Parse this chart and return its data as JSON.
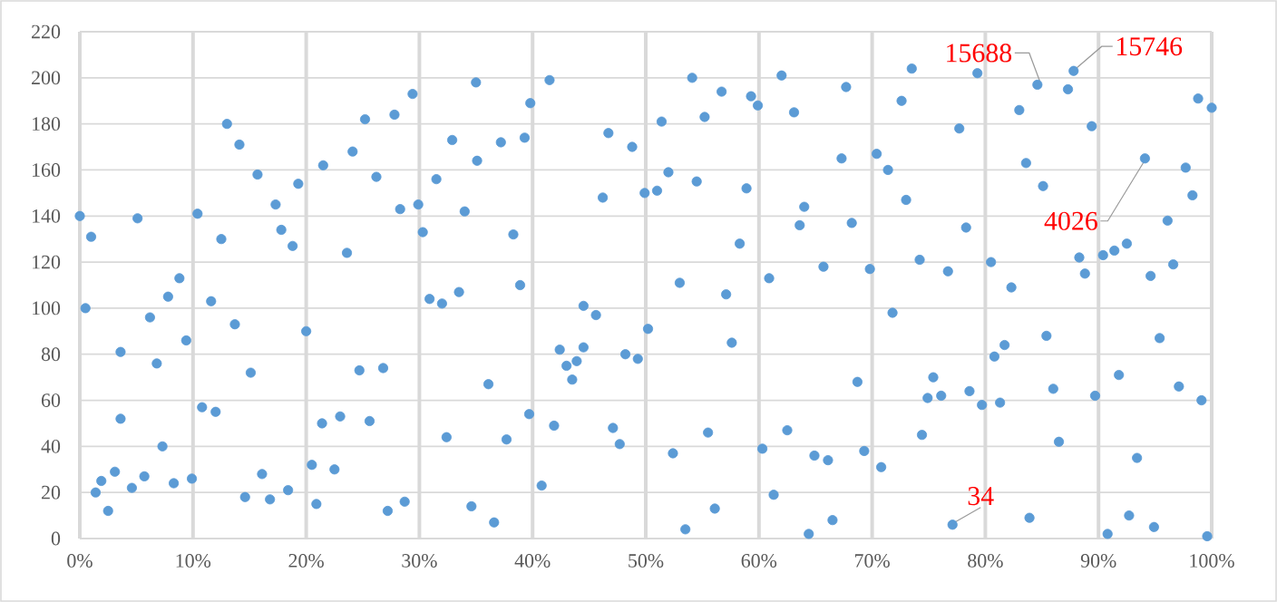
{
  "chart_data": {
    "type": "scatter",
    "color": "#5b9bd5",
    "marker": "circle",
    "grid": true,
    "xlim": [
      0,
      100
    ],
    "ylim": [
      0,
      220
    ],
    "xticks": [
      {
        "value": 0,
        "label": "0%"
      },
      {
        "value": 10,
        "label": "10%"
      },
      {
        "value": 20,
        "label": "20%"
      },
      {
        "value": 30,
        "label": "30%"
      },
      {
        "value": 40,
        "label": "40%"
      },
      {
        "value": 50,
        "label": "50%"
      },
      {
        "value": 60,
        "label": "60%"
      },
      {
        "value": 70,
        "label": "70%"
      },
      {
        "value": 80,
        "label": "80%"
      },
      {
        "value": 90,
        "label": "90%"
      },
      {
        "value": 100,
        "label": "100%"
      }
    ],
    "yticks": [
      0,
      20,
      40,
      60,
      80,
      100,
      120,
      140,
      160,
      180,
      200,
      220
    ],
    "x": [
      0,
      1.0,
      5.1,
      8.8,
      10.4,
      12.5,
      13.0,
      14.1,
      15.7,
      17.3,
      17.8,
      18.8,
      19.3,
      21.5,
      23.6,
      24.1,
      25.2,
      26.2,
      27.8,
      28.3,
      29.4,
      29.9,
      30.3,
      31.5,
      32.9,
      35.0,
      35.1,
      34.0,
      37.2,
      38.3,
      39.3,
      39.8,
      41.5,
      46.7,
      48.8,
      46.2,
      49.9,
      51.0,
      51.4,
      52.0,
      54.1,
      55.2,
      54.5,
      56.7,
      59.3,
      59.9,
      58.9,
      58.3,
      62.0,
      63.1,
      63.6,
      64.0,
      67.7,
      67.3,
      68.2,
      65.7,
      60.9,
      69.8,
      53.0,
      57.1,
      38.9,
      33.5,
      73.5,
      72.6,
      70.4,
      71.4,
      73.0,
      74.2,
      76.7,
      77.7,
      78.3,
      79.3,
      80.5,
      82.3,
      83.0,
      83.6,
      84.6,
      85.1,
      87.3,
      87.8,
      89.4,
      88.3,
      88.8,
      90.4,
      91.4,
      92.5,
      94.1,
      96.1,
      96.6,
      94.6,
      97.7,
      98.3,
      98.8,
      100,
      0.5,
      3.6,
      6.2,
      6.8,
      7.8,
      9.4,
      11.6,
      13.7,
      15.1,
      20.0,
      24.7,
      26.8,
      3.6,
      7.3,
      10.8,
      12.0,
      21.4,
      23.0,
      25.6,
      20.5,
      22.5,
      3.1,
      1.9,
      1.4,
      2.5,
      4.6,
      5.7,
      8.3,
      9.9,
      14.6,
      16.1,
      16.8,
      18.4,
      20.9,
      27.2,
      28.7,
      30.9,
      32.0,
      32.4,
      44.5,
      45.6,
      50.2,
      42.4,
      44.5,
      43.0,
      43.9,
      43.5,
      48.2,
      49.3,
      57.6,
      36.1,
      68.7,
      39.7,
      37.7,
      41.9,
      47.1,
      47.7,
      55.5,
      52.4,
      60.3,
      62.5,
      64.9,
      66.1,
      69.3,
      40.8,
      61.3,
      34.6,
      36.6,
      56.1,
      53.5,
      64.4,
      66.5,
      71.8,
      85.4,
      95.4,
      80.8,
      81.7,
      75.4,
      74.9,
      76.1,
      78.6,
      79.7,
      81.3,
      86.0,
      89.7,
      91.8,
      97.1,
      99.1,
      74.4,
      86.5,
      93.4,
      70.8,
      77.1,
      83.9,
      90.8,
      92.7,
      94.9,
      99.6
    ],
    "values": [
      140,
      131,
      139,
      113,
      141,
      130,
      180,
      171,
      158,
      145,
      134,
      127,
      154,
      162,
      124,
      168,
      182,
      157,
      184,
      143,
      193,
      145,
      133,
      156,
      173,
      198,
      164,
      142,
      172,
      132,
      174,
      189,
      199,
      176,
      170,
      148,
      150,
      151,
      181,
      159,
      200,
      183,
      155,
      194,
      192,
      188,
      152,
      128,
      201,
      185,
      136,
      144,
      196,
      165,
      137,
      118,
      113,
      117,
      111,
      106,
      110,
      107,
      204,
      190,
      167,
      160,
      147,
      121,
      116,
      178,
      135,
      202,
      120,
      109,
      186,
      163,
      197,
      153,
      195,
      203,
      179,
      122,
      115,
      123,
      125,
      128,
      165,
      138,
      119,
      114,
      161,
      149,
      191,
      187,
      100,
      81,
      96,
      76,
      105,
      86,
      103,
      93,
      72,
      90,
      73,
      74,
      52,
      40,
      57,
      55,
      50,
      53,
      51,
      32,
      30,
      29,
      25,
      20,
      12,
      22,
      27,
      24,
      26,
      18,
      28,
      17,
      21,
      15,
      12,
      16,
      104,
      102,
      44,
      101,
      97,
      91,
      82,
      83,
      75,
      77,
      69,
      80,
      78,
      85,
      67,
      68,
      54,
      43,
      49,
      48,
      41,
      46,
      37,
      39,
      47,
      36,
      34,
      38,
      23,
      19,
      14,
      7,
      13,
      4,
      2,
      8,
      98,
      88,
      87,
      79,
      84,
      70,
      61,
      62,
      64,
      58,
      59,
      65,
      62,
      71,
      66,
      60,
      45,
      42,
      35,
      31,
      6,
      9,
      2,
      10,
      5,
      1
    ],
    "annotations": [
      {
        "text": "15688",
        "x": 84.6,
        "y": 197
      },
      {
        "text": "15746",
        "x": 87.8,
        "y": 203
      },
      {
        "text": "4026",
        "x": 94.1,
        "y": 165
      },
      {
        "text": "34",
        "x": 77.1,
        "y": 6
      }
    ]
  }
}
